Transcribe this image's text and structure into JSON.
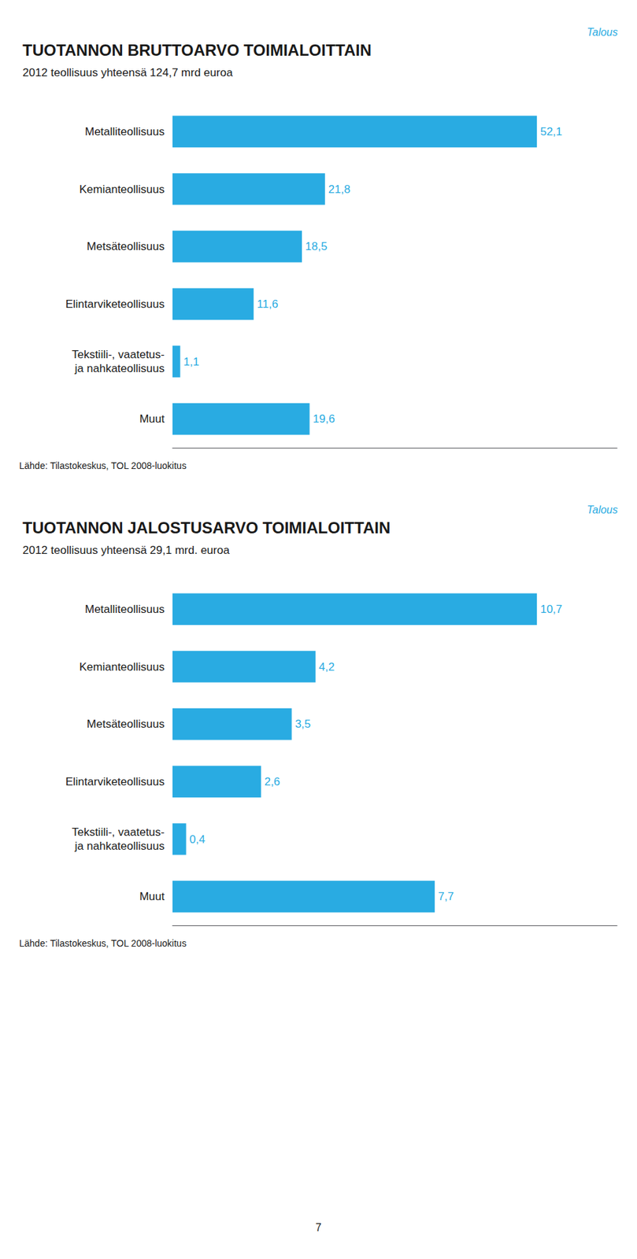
{
  "chart_data": [
    {
      "type": "bar",
      "orientation": "horizontal",
      "title": "TUOTANNON BRUTTOARVO TOIMIALOITTAIN",
      "subtitle": "2012 teollisuus yhteensä 124,7 mrd euroa",
      "annotations": [
        "Talous",
        "Lähde: Tilastokeskus, TOL 2008-luokitus"
      ],
      "categories": [
        "Metalliteollisuus",
        "Kemianteollisuus",
        "Metsäteollisuus",
        "Elintarviketeollisuus",
        "Tekstiili-, vaatetus-\nja nahkateollisuus",
        "Muut"
      ],
      "values": [
        52.1,
        21.8,
        18.5,
        11.6,
        1.1,
        19.6
      ],
      "value_labels": [
        "52,1",
        "21,8",
        "18,5",
        "11,6",
        "1,1",
        "19,6"
      ],
      "color": "#29ABE2",
      "xlim": [
        0,
        63.562
      ],
      "data_labels": true,
      "tick_labels": "y",
      "grid": false
    },
    {
      "type": "bar",
      "orientation": "horizontal",
      "title": "TUOTANNON JALOSTUSARVO TOIMIALOITTAIN",
      "subtitle": "2012 teollisuus yhteensä 29,1 mrd. euroa",
      "annotations": [
        "Talous",
        "Lähde: Tilastokeskus, TOL 2008-luokitus",
        "7"
      ],
      "categories": [
        "Metalliteollisuus",
        "Kemianteollisuus",
        "Metsäteollisuus",
        "Elintarviketeollisuus",
        "Tekstiili-, vaatetus-\nja nahkateollisuus",
        "Muut"
      ],
      "values": [
        10.7,
        4.2,
        3.5,
        2.6,
        0.4,
        7.7
      ],
      "value_labels": [
        "10,7",
        "4,2",
        "3,5",
        "2,6",
        "0,4",
        "7,7"
      ],
      "color": "#29ABE2",
      "xlim": [
        0,
        13.054
      ],
      "data_labels": true,
      "tick_labels": "y",
      "grid": false
    }
  ]
}
